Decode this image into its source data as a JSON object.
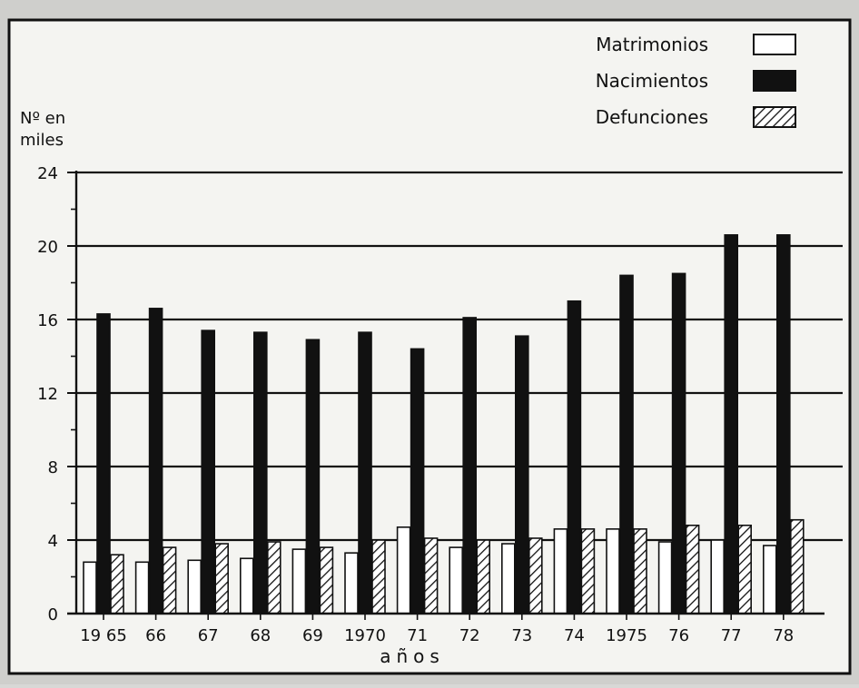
{
  "chart_data": {
    "type": "bar",
    "ylabel_line1": "Nº en",
    "ylabel_line2": "miles",
    "xlabel": "años",
    "ylim": [
      0,
      24
    ],
    "yticks": [
      0,
      4,
      8,
      12,
      16,
      20,
      24
    ],
    "grid": true,
    "legend": "top-right",
    "categories": [
      "1965",
      "66",
      "67",
      "68",
      "69",
      "1970",
      "71",
      "72",
      "73",
      "74",
      "1975",
      "76",
      "77",
      "78"
    ],
    "tick_labels": [
      "19 65",
      "66",
      "67",
      "68",
      "69",
      "1970",
      "71",
      "72",
      "73",
      "74",
      "1975",
      "76",
      "77",
      "78"
    ],
    "series": [
      {
        "name": "Matrimonios",
        "style": "open",
        "values": [
          2.8,
          2.8,
          2.9,
          3.0,
          3.5,
          3.3,
          4.7,
          3.6,
          3.8,
          4.6,
          4.6,
          3.9,
          4.0,
          3.7
        ]
      },
      {
        "name": "Nacimientos",
        "style": "solid",
        "values": [
          16.3,
          16.6,
          15.4,
          15.3,
          14.9,
          15.3,
          14.4,
          16.1,
          15.1,
          17.0,
          18.4,
          18.5,
          20.6,
          20.6
        ]
      },
      {
        "name": "Defunciones",
        "style": "hatched",
        "values": [
          3.2,
          3.6,
          3.8,
          3.9,
          3.6,
          4.0,
          4.1,
          4.0,
          4.1,
          4.6,
          4.6,
          4.8,
          4.8,
          5.1
        ]
      }
    ],
    "colors": {
      "paper": "#f4f4f1",
      "ink": "#111111",
      "open_fill": "#ffffff"
    }
  }
}
